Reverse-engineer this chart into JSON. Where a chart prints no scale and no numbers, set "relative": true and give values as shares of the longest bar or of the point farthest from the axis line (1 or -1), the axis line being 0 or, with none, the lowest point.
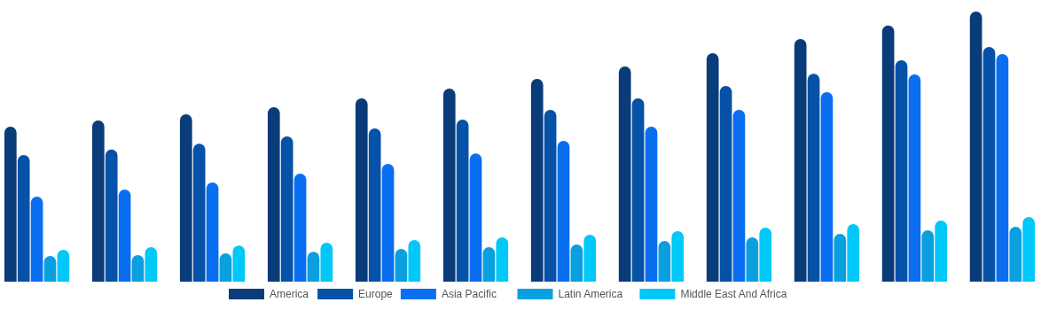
{
  "chart_data": {
    "type": "bar",
    "relative": true,
    "legend": "bottom",
    "categories": [
      null,
      null,
      null,
      null,
      null,
      null,
      null,
      null,
      null,
      null,
      null,
      null
    ],
    "series": [
      {
        "name": "America",
        "color": "#0b3c7a",
        "values": [
          0.574,
          0.597,
          0.62,
          0.646,
          0.679,
          0.715,
          0.751,
          0.797,
          0.846,
          0.898,
          0.948,
          1
        ]
      },
      {
        "name": "Europe",
        "color": "#0552a8",
        "values": [
          0.469,
          0.489,
          0.511,
          0.538,
          0.567,
          0.6,
          0.636,
          0.679,
          0.725,
          0.77,
          0.82,
          0.869
        ]
      },
      {
        "name": "Asia Pacific",
        "color": "#0a6ef0",
        "values": [
          0.315,
          0.341,
          0.367,
          0.4,
          0.436,
          0.475,
          0.521,
          0.574,
          0.636,
          0.702,
          0.767,
          0.843
        ]
      },
      {
        "name": "Latin America",
        "color": "#0aa0e0",
        "values": [
          0.095,
          0.098,
          0.105,
          0.111,
          0.121,
          0.128,
          0.138,
          0.151,
          0.164,
          0.177,
          0.19,
          0.203
        ]
      },
      {
        "name": "Middle East And Africa",
        "color": "#00c8f8",
        "values": [
          0.118,
          0.128,
          0.134,
          0.144,
          0.154,
          0.164,
          0.174,
          0.187,
          0.2,
          0.213,
          0.226,
          0.239
        ]
      }
    ]
  }
}
